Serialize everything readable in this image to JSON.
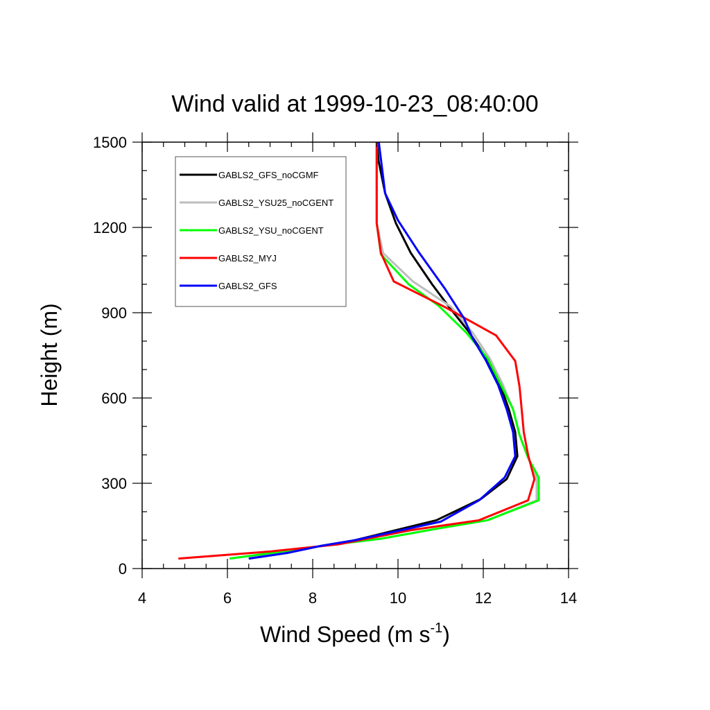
{
  "chart_data": {
    "type": "line",
    "title": "Wind valid at 1999-10-23_08:40:00",
    "xlabel": "Wind Speed (m s",
    "xlabel_sup": "-1",
    "xlabel_close": ")",
    "ylabel": "Height (m)",
    "xlim": [
      4,
      14
    ],
    "ylim": [
      0,
      1500
    ],
    "x_ticks": [
      4,
      6,
      8,
      10,
      12,
      14
    ],
    "y_ticks": [
      0,
      300,
      600,
      900,
      1200,
      1500
    ],
    "grid": false,
    "legend_position": "top-left",
    "series": [
      {
        "name": "GABLS2_GFS_noCGMF",
        "color": "#000000",
        "points": [
          [
            6.5,
            35
          ],
          [
            7.4,
            55
          ],
          [
            8.2,
            80
          ],
          [
            9.0,
            100
          ],
          [
            10.9,
            170
          ],
          [
            11.95,
            245
          ],
          [
            12.55,
            315
          ],
          [
            12.8,
            395
          ],
          [
            12.75,
            480
          ],
          [
            12.6,
            560
          ],
          [
            12.4,
            645
          ],
          [
            12.1,
            735
          ],
          [
            11.65,
            835
          ],
          [
            11.2,
            920
          ],
          [
            10.8,
            1000
          ],
          [
            10.3,
            1110
          ],
          [
            9.95,
            1215
          ],
          [
            9.7,
            1320
          ],
          [
            9.55,
            1430
          ],
          [
            9.5,
            1500
          ]
        ]
      },
      {
        "name": "GABLS2_YSU25_noCGENT",
        "color": "#bdbdbd",
        "points": [
          [
            6.05,
            35
          ],
          [
            6.8,
            50
          ],
          [
            7.5,
            65
          ],
          [
            8.5,
            85
          ],
          [
            9.6,
            105
          ],
          [
            10.9,
            140
          ],
          [
            12.1,
            170
          ],
          [
            13.25,
            240
          ],
          [
            13.25,
            320
          ],
          [
            13.05,
            390
          ],
          [
            12.85,
            470
          ],
          [
            12.7,
            560
          ],
          [
            12.45,
            650
          ],
          [
            12.15,
            740
          ],
          [
            11.75,
            830
          ],
          [
            11.25,
            920
          ],
          [
            10.35,
            1010
          ],
          [
            9.65,
            1110
          ],
          [
            9.5,
            1215
          ],
          [
            9.5,
            1500
          ]
        ]
      },
      {
        "name": "GABLS2_YSU_noCGENT",
        "color": "#00ff00",
        "points": [
          [
            6.05,
            35
          ],
          [
            6.8,
            50
          ],
          [
            7.5,
            65
          ],
          [
            8.5,
            85
          ],
          [
            9.6,
            105
          ],
          [
            10.9,
            140
          ],
          [
            12.1,
            170
          ],
          [
            13.3,
            240
          ],
          [
            13.3,
            320
          ],
          [
            13.05,
            390
          ],
          [
            12.85,
            470
          ],
          [
            12.7,
            560
          ],
          [
            12.4,
            650
          ],
          [
            12.1,
            740
          ],
          [
            11.6,
            830
          ],
          [
            10.95,
            925
          ],
          [
            10.25,
            1000
          ],
          [
            9.6,
            1105
          ],
          [
            9.5,
            1215
          ],
          [
            9.5,
            1500
          ]
        ]
      },
      {
        "name": "GABLS2_MYJ",
        "color": "#ff0000",
        "points": [
          [
            4.85,
            35
          ],
          [
            7.0,
            60
          ],
          [
            8.6,
            85
          ],
          [
            10.3,
            135
          ],
          [
            11.9,
            170
          ],
          [
            13.05,
            240
          ],
          [
            13.2,
            315
          ],
          [
            13.05,
            400
          ],
          [
            12.95,
            480
          ],
          [
            12.9,
            560
          ],
          [
            12.85,
            640
          ],
          [
            12.75,
            730
          ],
          [
            12.3,
            820
          ],
          [
            11.1,
            920
          ],
          [
            9.9,
            1010
          ],
          [
            9.6,
            1110
          ],
          [
            9.5,
            1215
          ],
          [
            9.5,
            1500
          ]
        ]
      },
      {
        "name": "GABLS2_GFS",
        "color": "#0000ff",
        "points": [
          [
            6.5,
            35
          ],
          [
            7.4,
            55
          ],
          [
            8.2,
            80
          ],
          [
            9.0,
            100
          ],
          [
            11.0,
            165
          ],
          [
            11.9,
            240
          ],
          [
            12.5,
            320
          ],
          [
            12.75,
            395
          ],
          [
            12.7,
            480
          ],
          [
            12.55,
            560
          ],
          [
            12.35,
            645
          ],
          [
            12.05,
            735
          ],
          [
            11.75,
            810
          ],
          [
            11.55,
            880
          ],
          [
            11.1,
            985
          ],
          [
            10.5,
            1110
          ],
          [
            10.0,
            1225
          ],
          [
            9.7,
            1320
          ],
          [
            9.6,
            1440
          ],
          [
            9.55,
            1500
          ]
        ]
      }
    ]
  }
}
